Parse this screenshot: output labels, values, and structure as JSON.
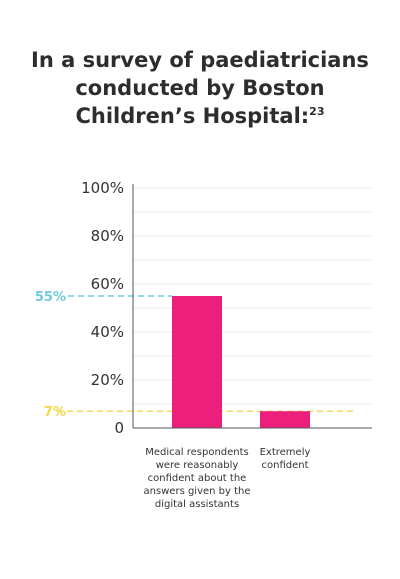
{
  "title": {
    "line1": "In a survey of paediatricians",
    "line2": "conducted by Boston",
    "line3": "Children’s Hospital:",
    "footnote": "23"
  },
  "colors": {
    "bar": "#ec1f7d",
    "annot_high": "#6ccbdd",
    "annot_low": "#f3d84a",
    "axis": "#555555",
    "grid": "#ececec"
  },
  "chart_data": {
    "type": "bar",
    "categories": [
      "Medical respondents were reasonably confident about the answers given by the digital assistants",
      "Extremely confident"
    ],
    "values": [
      55,
      7
    ],
    "ylim": [
      0,
      100
    ],
    "yticks": [
      0,
      20,
      40,
      60,
      80,
      100
    ],
    "ytick_labels": [
      "0",
      "20%",
      "40%",
      "60%",
      "80%",
      "100%"
    ],
    "grid": true,
    "annotations": [
      {
        "label": "55%",
        "value": 55,
        "color": "#6ccbdd"
      },
      {
        "label": "7%",
        "value": 7,
        "color": "#f3d84a"
      }
    ]
  }
}
